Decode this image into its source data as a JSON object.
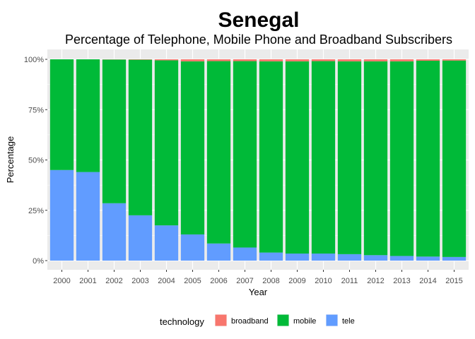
{
  "chart_data": {
    "type": "bar",
    "stacked": true,
    "title": "Senegal",
    "subtitle": "Percentage of Telephone, Mobile Phone and Broadband Subscribers",
    "xlabel": "Year",
    "ylabel": "Percentage",
    "categories": [
      "2000",
      "2001",
      "2002",
      "2003",
      "2004",
      "2005",
      "2006",
      "2007",
      "2008",
      "2009",
      "2010",
      "2011",
      "2012",
      "2013",
      "2014",
      "2015"
    ],
    "ylim": [
      0,
      100
    ],
    "y_ticks": [
      0,
      25,
      50,
      75,
      100
    ],
    "y_tick_labels": [
      "0%",
      "25%",
      "50%",
      "75%",
      "100%"
    ],
    "series": [
      {
        "name": "tele",
        "color": "#619CFF",
        "values": [
          45,
          44,
          28.5,
          22.5,
          17.5,
          13,
          8.5,
          6.5,
          4,
          3.5,
          3.5,
          3.2,
          2.7,
          2.3,
          2,
          1.8
        ]
      },
      {
        "name": "mobile",
        "color": "#00BA38",
        "values": [
          55,
          56,
          71.4,
          77.3,
          82,
          86,
          90.6,
          92.6,
          95,
          95.5,
          95.6,
          95.8,
          96.3,
          96.7,
          97.3,
          97.6
        ]
      },
      {
        "name": "broadband",
        "color": "#F8766D",
        "values": [
          0,
          0,
          0.1,
          0.2,
          0.5,
          1,
          0.9,
          0.9,
          1,
          1,
          0.9,
          1,
          1,
          1,
          0.7,
          0.6
        ]
      }
    ],
    "grid": true,
    "legend": {
      "title": "technology",
      "position": "bottom",
      "order": [
        "broadband",
        "mobile",
        "tele"
      ]
    }
  }
}
